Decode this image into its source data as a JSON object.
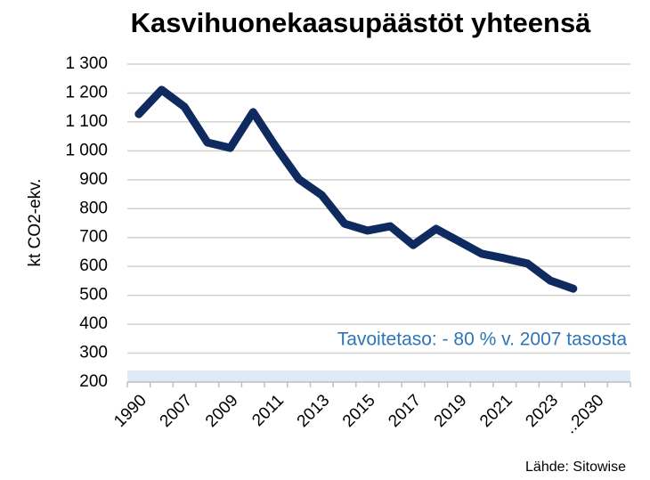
{
  "chart_data": {
    "type": "line",
    "title": "Kasvihuonekaasupäästöt yhteensä",
    "y_label": "kt CO2-ekv.",
    "annotation": "Tavoitetaso: - 80 % v. 2007 tasosta",
    "source": "Lähde: Sitowise",
    "categories": [
      "1990",
      null,
      "2007",
      null,
      "2009",
      null,
      "2011",
      null,
      "2013",
      null,
      "2015",
      null,
      "2017",
      null,
      "2019",
      null,
      "2021",
      null,
      "2023",
      null,
      "..2030",
      null
    ],
    "series": [
      {
        "name": "Kasvihuonekaasupäästöt",
        "color": "#0f2a5e",
        "values": [
          1127,
          1211,
          1152,
          1029,
          1010,
          1134,
          1013,
          902,
          847,
          748,
          724,
          739,
          674,
          730,
          687,
          644,
          628,
          610,
          551,
          523,
          null,
          null
        ]
      }
    ],
    "target_band": {
      "range": [
        200,
        240
      ],
      "color": "#deebf7"
    },
    "ylim": [
      200,
      1300
    ],
    "yticks": [
      200,
      300,
      400,
      500,
      600,
      700,
      800,
      900,
      {
        "value": 1000,
        "label": "1 000"
      },
      {
        "value": 1100,
        "label": "1 100"
      },
      {
        "value": 1200,
        "label": "1 200"
      },
      {
        "value": 1300,
        "label": "1 300"
      }
    ],
    "grid": true
  }
}
